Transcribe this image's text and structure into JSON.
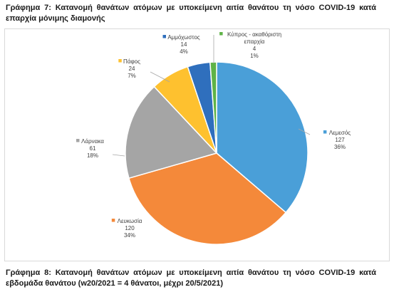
{
  "figure_top": {
    "title": "Γράφημα 7: Κατανομή θανάτων ατόμων με υποκείμενη αιτία θανάτου τη νόσο COVID-19 κατά επαρχία μόνιμης διαμονής"
  },
  "figure_bottom": {
    "title": "Γράφημα 8: Κατανομή θανάτων ατόμων με υποκείμενη αιτία θανάτου τη νόσο COVID-19 κατά εβδομάδα θανάτου (w20/2021 = 4 θάνατοι, μέχρι 20/5/2021)"
  },
  "chart_data": {
    "type": "pie",
    "title": "",
    "legend": "none",
    "slices": [
      {
        "label": "Λεμεσός",
        "value": 127,
        "percent_label": "36%",
        "color": "#4a9fd8"
      },
      {
        "label": "Λευκωσία",
        "value": 120,
        "percent_label": "34%",
        "color": "#f4893a"
      },
      {
        "label": "Λάρνακα",
        "value": 61,
        "percent_label": "18%",
        "color": "#a5a5a5"
      },
      {
        "label": "Πάφος",
        "value": 24,
        "percent_label": "7%",
        "color": "#fec12f"
      },
      {
        "label": "Αμμόχωστος",
        "value": 14,
        "percent_label": "4%",
        "color": "#2f6fbd"
      },
      {
        "label": "Κύπρος - ακαθόριστη επαρχία",
        "value": 4,
        "percent_label": "1%",
        "color": "#5fb347"
      }
    ]
  }
}
